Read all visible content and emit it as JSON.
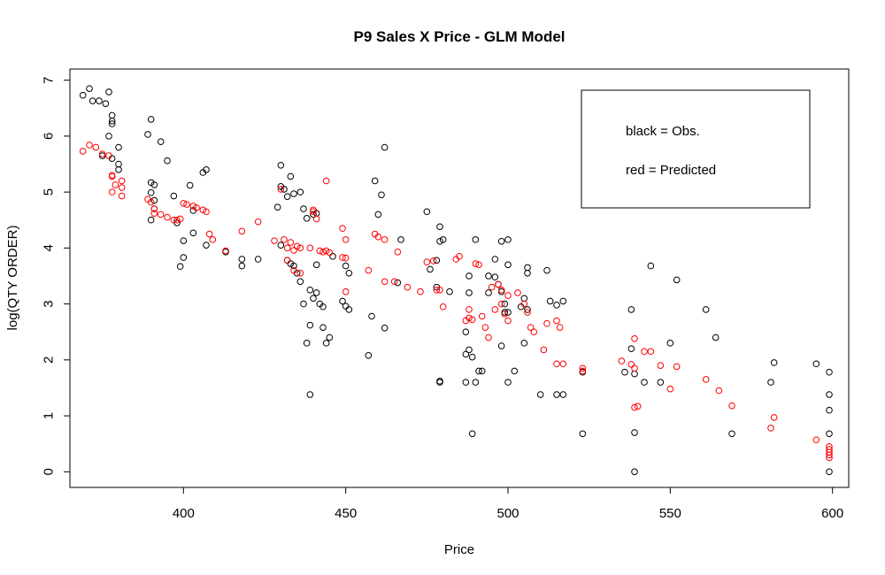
{
  "chart_data": {
    "type": "scatter",
    "title": "P9 Sales X Price - GLM Model",
    "xlabel": "Price",
    "ylabel": "log(QTY ORDER)",
    "xlim": [
      365,
      605
    ],
    "ylim": [
      -0.28,
      7.2
    ],
    "xticks": [
      400,
      450,
      500,
      550,
      600
    ],
    "yticks": [
      0,
      1,
      2,
      3,
      4,
      5,
      6,
      7
    ],
    "legend": {
      "placement": "top-right",
      "entries": [
        "black = Obs.",
        "red = Predicted"
      ]
    },
    "series": [
      {
        "color": "#000000",
        "points": [
          [
            369,
            6.73
          ],
          [
            371,
            6.85
          ],
          [
            372,
            6.63
          ],
          [
            374,
            6.63
          ],
          [
            376,
            6.58
          ],
          [
            377,
            6.79
          ],
          [
            378,
            6.37
          ],
          [
            378,
            6.27
          ],
          [
            378,
            6.22
          ],
          [
            377,
            6.0
          ],
          [
            375,
            5.65
          ],
          [
            378,
            5.6
          ],
          [
            380,
            5.8
          ],
          [
            380,
            5.5
          ],
          [
            380,
            5.4
          ],
          [
            390,
            6.3
          ],
          [
            389,
            6.03
          ],
          [
            393,
            5.9
          ],
          [
            395,
            5.56
          ],
          [
            390,
            5.17
          ],
          [
            391,
            5.13
          ],
          [
            390,
            4.99
          ],
          [
            391,
            4.85
          ],
          [
            391,
            4.7
          ],
          [
            390,
            4.5
          ],
          [
            397,
            4.93
          ],
          [
            398,
            4.45
          ],
          [
            402,
            5.12
          ],
          [
            406,
            5.35
          ],
          [
            407,
            5.4
          ],
          [
            403,
            4.67
          ],
          [
            407,
            4.05
          ],
          [
            400,
            4.13
          ],
          [
            403,
            4.27
          ],
          [
            400,
            3.83
          ],
          [
            399,
            3.67
          ],
          [
            413,
            3.93
          ],
          [
            418,
            3.8
          ],
          [
            418,
            3.68
          ],
          [
            423,
            3.8
          ],
          [
            430,
            5.48
          ],
          [
            429,
            4.73
          ],
          [
            431,
            5.05
          ],
          [
            432,
            4.92
          ],
          [
            434,
            4.97
          ],
          [
            436,
            5.0
          ],
          [
            437,
            4.7
          ],
          [
            430,
            5.1
          ],
          [
            433,
            5.28
          ],
          [
            438,
            4.53
          ],
          [
            440,
            4.6
          ],
          [
            441,
            4.62
          ],
          [
            430,
            4.05
          ],
          [
            432,
            3.78
          ],
          [
            433,
            3.72
          ],
          [
            434,
            3.68
          ],
          [
            435,
            3.55
          ],
          [
            436,
            3.4
          ],
          [
            437,
            3.0
          ],
          [
            438,
            2.3
          ],
          [
            439,
            2.62
          ],
          [
            440,
            3.1
          ],
          [
            441,
            3.2
          ],
          [
            442,
            3.0
          ],
          [
            443,
            2.95
          ],
          [
            444,
            2.3
          ],
          [
            445,
            2.4
          ],
          [
            443,
            2.58
          ],
          [
            439,
            1.38
          ],
          [
            439,
            3.25
          ],
          [
            441,
            3.7
          ],
          [
            446,
            3.85
          ],
          [
            450,
            3.68
          ],
          [
            451,
            3.55
          ],
          [
            450,
            2.96
          ],
          [
            449,
            3.05
          ],
          [
            451,
            2.9
          ],
          [
            457,
            2.08
          ],
          [
            458,
            2.78
          ],
          [
            459,
            5.2
          ],
          [
            460,
            4.6
          ],
          [
            461,
            4.95
          ],
          [
            462,
            5.8
          ],
          [
            462,
            2.57
          ],
          [
            466,
            3.38
          ],
          [
            467,
            4.15
          ],
          [
            475,
            4.65
          ],
          [
            479,
            4.12
          ],
          [
            479,
            4.38
          ],
          [
            480,
            4.15
          ],
          [
            478,
            3.78
          ],
          [
            476,
            3.62
          ],
          [
            478,
            3.3
          ],
          [
            482,
            3.22
          ],
          [
            479,
            1.6
          ],
          [
            479,
            1.62
          ],
          [
            487,
            1.6
          ],
          [
            487,
            2.1
          ],
          [
            488,
            2.18
          ],
          [
            489,
            2.05
          ],
          [
            487,
            2.5
          ],
          [
            489,
            0.68
          ],
          [
            490,
            1.6
          ],
          [
            491,
            1.8
          ],
          [
            492,
            1.8
          ],
          [
            488,
            3.2
          ],
          [
            488,
            3.5
          ],
          [
            490,
            4.15
          ],
          [
            494,
            3.5
          ],
          [
            494,
            3.2
          ],
          [
            496,
            3.8
          ],
          [
            496,
            3.48
          ],
          [
            497,
            3.35
          ],
          [
            498,
            3.22
          ],
          [
            499,
            3.0
          ],
          [
            499,
            2.85
          ],
          [
            500,
            2.85
          ],
          [
            498,
            4.12
          ],
          [
            500,
            4.15
          ],
          [
            500,
            3.7
          ],
          [
            498,
            2.25
          ],
          [
            500,
            1.6
          ],
          [
            502,
            1.8
          ],
          [
            504,
            2.95
          ],
          [
            505,
            3.1
          ],
          [
            506,
            2.9
          ],
          [
            506,
            3.55
          ],
          [
            506,
            3.65
          ],
          [
            505,
            2.3
          ],
          [
            510,
            1.38
          ],
          [
            512,
            3.6
          ],
          [
            513,
            3.05
          ],
          [
            515,
            2.98
          ],
          [
            515,
            1.38
          ],
          [
            517,
            1.38
          ],
          [
            517,
            3.05
          ],
          [
            523,
            1.78
          ],
          [
            523,
            0.68
          ],
          [
            536,
            1.78
          ],
          [
            538,
            2.2
          ],
          [
            539,
            1.75
          ],
          [
            538,
            2.9
          ],
          [
            539,
            0.0
          ],
          [
            539,
            0.7
          ],
          [
            542,
            1.6
          ],
          [
            544,
            3.68
          ],
          [
            547,
            1.6
          ],
          [
            550,
            2.3
          ],
          [
            552,
            3.43
          ],
          [
            561,
            2.9
          ],
          [
            564,
            2.4
          ],
          [
            569,
            0.68
          ],
          [
            581,
            1.6
          ],
          [
            582,
            1.95
          ],
          [
            595,
            1.93
          ],
          [
            599,
            1.78
          ],
          [
            599,
            1.38
          ],
          [
            599,
            1.1
          ],
          [
            599,
            0.68
          ],
          [
            599,
            0.0
          ]
        ]
      },
      {
        "color": "#ff0000",
        "points": [
          [
            369,
            5.73
          ],
          [
            371,
            5.84
          ],
          [
            373,
            5.8
          ],
          [
            375,
            5.68
          ],
          [
            377,
            5.65
          ],
          [
            378,
            5.3
          ],
          [
            378,
            5.28
          ],
          [
            379,
            5.13
          ],
          [
            378,
            5.0
          ],
          [
            381,
            5.2
          ],
          [
            381,
            5.08
          ],
          [
            381,
            4.93
          ],
          [
            389,
            4.87
          ],
          [
            390,
            4.82
          ],
          [
            391,
            4.7
          ],
          [
            391,
            4.62
          ],
          [
            393,
            4.6
          ],
          [
            395,
            4.55
          ],
          [
            397,
            4.5
          ],
          [
            398,
            4.5
          ],
          [
            399,
            4.52
          ],
          [
            400,
            4.8
          ],
          [
            401,
            4.78
          ],
          [
            403,
            4.75
          ],
          [
            404,
            4.72
          ],
          [
            406,
            4.68
          ],
          [
            407,
            4.65
          ],
          [
            408,
            4.25
          ],
          [
            409,
            4.15
          ],
          [
            413,
            3.95
          ],
          [
            418,
            4.3
          ],
          [
            423,
            4.47
          ],
          [
            428,
            4.13
          ],
          [
            430,
            5.05
          ],
          [
            431,
            4.15
          ],
          [
            432,
            4.0
          ],
          [
            433,
            4.1
          ],
          [
            434,
            3.96
          ],
          [
            435,
            4.03
          ],
          [
            436,
            4.0
          ],
          [
            432,
            3.78
          ],
          [
            434,
            3.6
          ],
          [
            436,
            3.55
          ],
          [
            439,
            4.0
          ],
          [
            440,
            4.65
          ],
          [
            440,
            4.68
          ],
          [
            441,
            4.52
          ],
          [
            442,
            3.95
          ],
          [
            443,
            3.93
          ],
          [
            444,
            3.95
          ],
          [
            444,
            5.2
          ],
          [
            445,
            3.92
          ],
          [
            449,
            3.83
          ],
          [
            449,
            4.35
          ],
          [
            450,
            4.15
          ],
          [
            450,
            3.82
          ],
          [
            450,
            3.22
          ],
          [
            457,
            3.6
          ],
          [
            459,
            4.25
          ],
          [
            460,
            4.2
          ],
          [
            462,
            4.15
          ],
          [
            462,
            3.4
          ],
          [
            465,
            3.4
          ],
          [
            466,
            3.93
          ],
          [
            469,
            3.3
          ],
          [
            473,
            3.22
          ],
          [
            475,
            3.75
          ],
          [
            477,
            3.77
          ],
          [
            478,
            3.25
          ],
          [
            479,
            3.25
          ],
          [
            480,
            2.95
          ],
          [
            484,
            3.8
          ],
          [
            485,
            3.85
          ],
          [
            487,
            2.7
          ],
          [
            488,
            2.75
          ],
          [
            488,
            2.9
          ],
          [
            489,
            2.72
          ],
          [
            490,
            3.72
          ],
          [
            491,
            3.7
          ],
          [
            492,
            2.78
          ],
          [
            493,
            2.58
          ],
          [
            494,
            2.4
          ],
          [
            495,
            3.3
          ],
          [
            496,
            2.9
          ],
          [
            497,
            3.35
          ],
          [
            498,
            3.25
          ],
          [
            498,
            3.0
          ],
          [
            499,
            2.82
          ],
          [
            500,
            2.7
          ],
          [
            500,
            3.15
          ],
          [
            503,
            3.2
          ],
          [
            505,
            3.0
          ],
          [
            506,
            2.85
          ],
          [
            507,
            2.58
          ],
          [
            508,
            2.5
          ],
          [
            511,
            2.18
          ],
          [
            512,
            2.65
          ],
          [
            515,
            2.7
          ],
          [
            515,
            1.93
          ],
          [
            517,
            1.93
          ],
          [
            516,
            2.58
          ],
          [
            523,
            1.85
          ],
          [
            523,
            1.8
          ],
          [
            535,
            1.98
          ],
          [
            538,
            1.92
          ],
          [
            539,
            1.85
          ],
          [
            539,
            1.15
          ],
          [
            540,
            1.17
          ],
          [
            539,
            2.38
          ],
          [
            542,
            2.15
          ],
          [
            544,
            2.15
          ],
          [
            547,
            1.9
          ],
          [
            550,
            1.48
          ],
          [
            552,
            1.88
          ],
          [
            561,
            1.65
          ],
          [
            565,
            1.45
          ],
          [
            569,
            1.18
          ],
          [
            581,
            0.78
          ],
          [
            582,
            0.97
          ],
          [
            595,
            0.57
          ],
          [
            599,
            0.25
          ],
          [
            599,
            0.3
          ],
          [
            599,
            0.35
          ],
          [
            599,
            0.4
          ],
          [
            599,
            0.45
          ]
        ]
      }
    ]
  }
}
